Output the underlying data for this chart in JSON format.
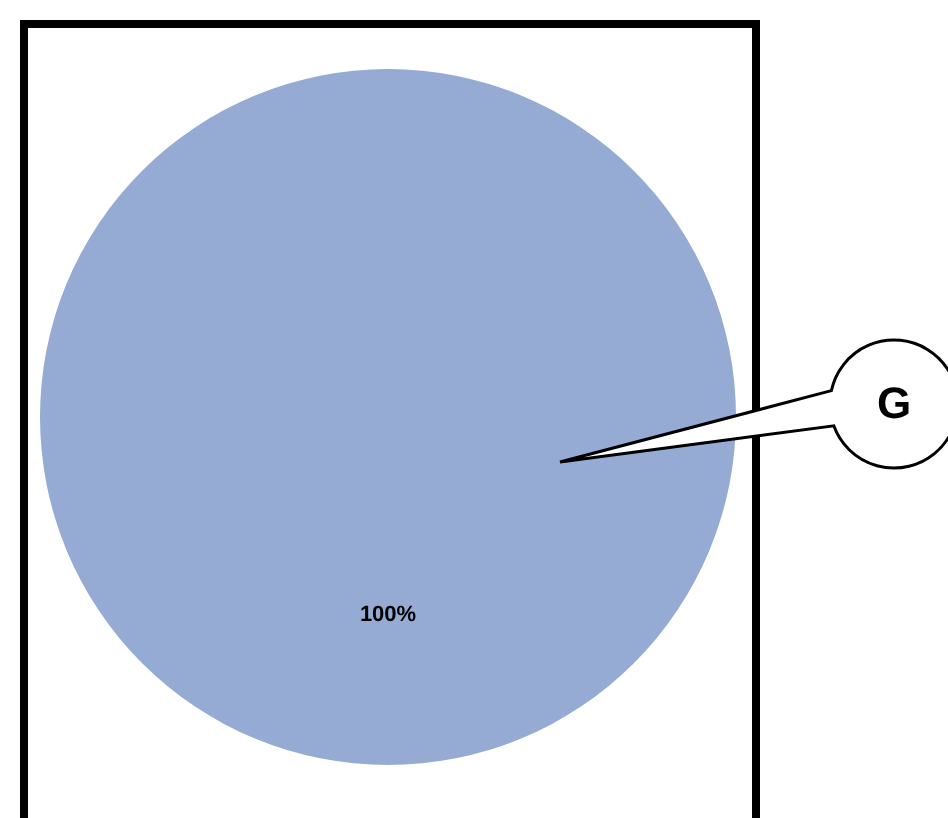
{
  "chart_data": {
    "type": "pie",
    "categories": [
      null
    ],
    "values": [
      100
    ],
    "colors": [
      "#95abd3"
    ],
    "value_labels": [
      "100%"
    ],
    "annotations": [
      "G"
    ]
  }
}
